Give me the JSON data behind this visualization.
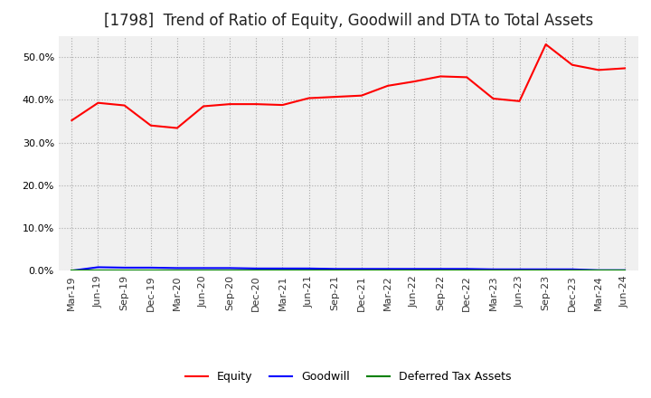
{
  "title": "[1798]  Trend of Ratio of Equity, Goodwill and DTA to Total Assets",
  "x_labels": [
    "Mar-19",
    "Jun-19",
    "Sep-19",
    "Dec-19",
    "Mar-20",
    "Jun-20",
    "Sep-20",
    "Dec-20",
    "Mar-21",
    "Jun-21",
    "Sep-21",
    "Dec-21",
    "Mar-22",
    "Jun-22",
    "Sep-22",
    "Dec-22",
    "Mar-23",
    "Jun-23",
    "Sep-23",
    "Dec-23",
    "Mar-24",
    "Jun-24"
  ],
  "equity": [
    0.352,
    0.393,
    0.387,
    0.34,
    0.334,
    0.385,
    0.39,
    0.39,
    0.388,
    0.404,
    0.407,
    0.41,
    0.433,
    0.443,
    0.455,
    0.453,
    0.403,
    0.397,
    0.53,
    0.482,
    0.47,
    0.474
  ],
  "goodwill": [
    0.0,
    0.008,
    0.007,
    0.007,
    0.006,
    0.006,
    0.006,
    0.005,
    0.005,
    0.005,
    0.004,
    0.004,
    0.004,
    0.004,
    0.004,
    0.004,
    0.003,
    0.003,
    0.003,
    0.003,
    0.001,
    0.001
  ],
  "dta": [
    0.0,
    0.0,
    0.0,
    0.0,
    0.0,
    0.0,
    0.0,
    0.0,
    0.0,
    0.0,
    0.0,
    0.0,
    0.0,
    0.0,
    0.0,
    0.0,
    0.0,
    0.0,
    0.0,
    0.0,
    0.0,
    0.0
  ],
  "equity_color": "#ff0000",
  "goodwill_color": "#0000ff",
  "dta_color": "#008000",
  "ylim": [
    0.0,
    0.55
  ],
  "yticks": [
    0.0,
    0.1,
    0.2,
    0.3,
    0.4,
    0.5
  ],
  "background_color": "#ffffff",
  "plot_bg_color": "#f0f0f0",
  "grid_color": "#999999",
  "title_fontsize": 12,
  "tick_fontsize": 8,
  "legend_labels": [
    "Equity",
    "Goodwill",
    "Deferred Tax Assets"
  ]
}
